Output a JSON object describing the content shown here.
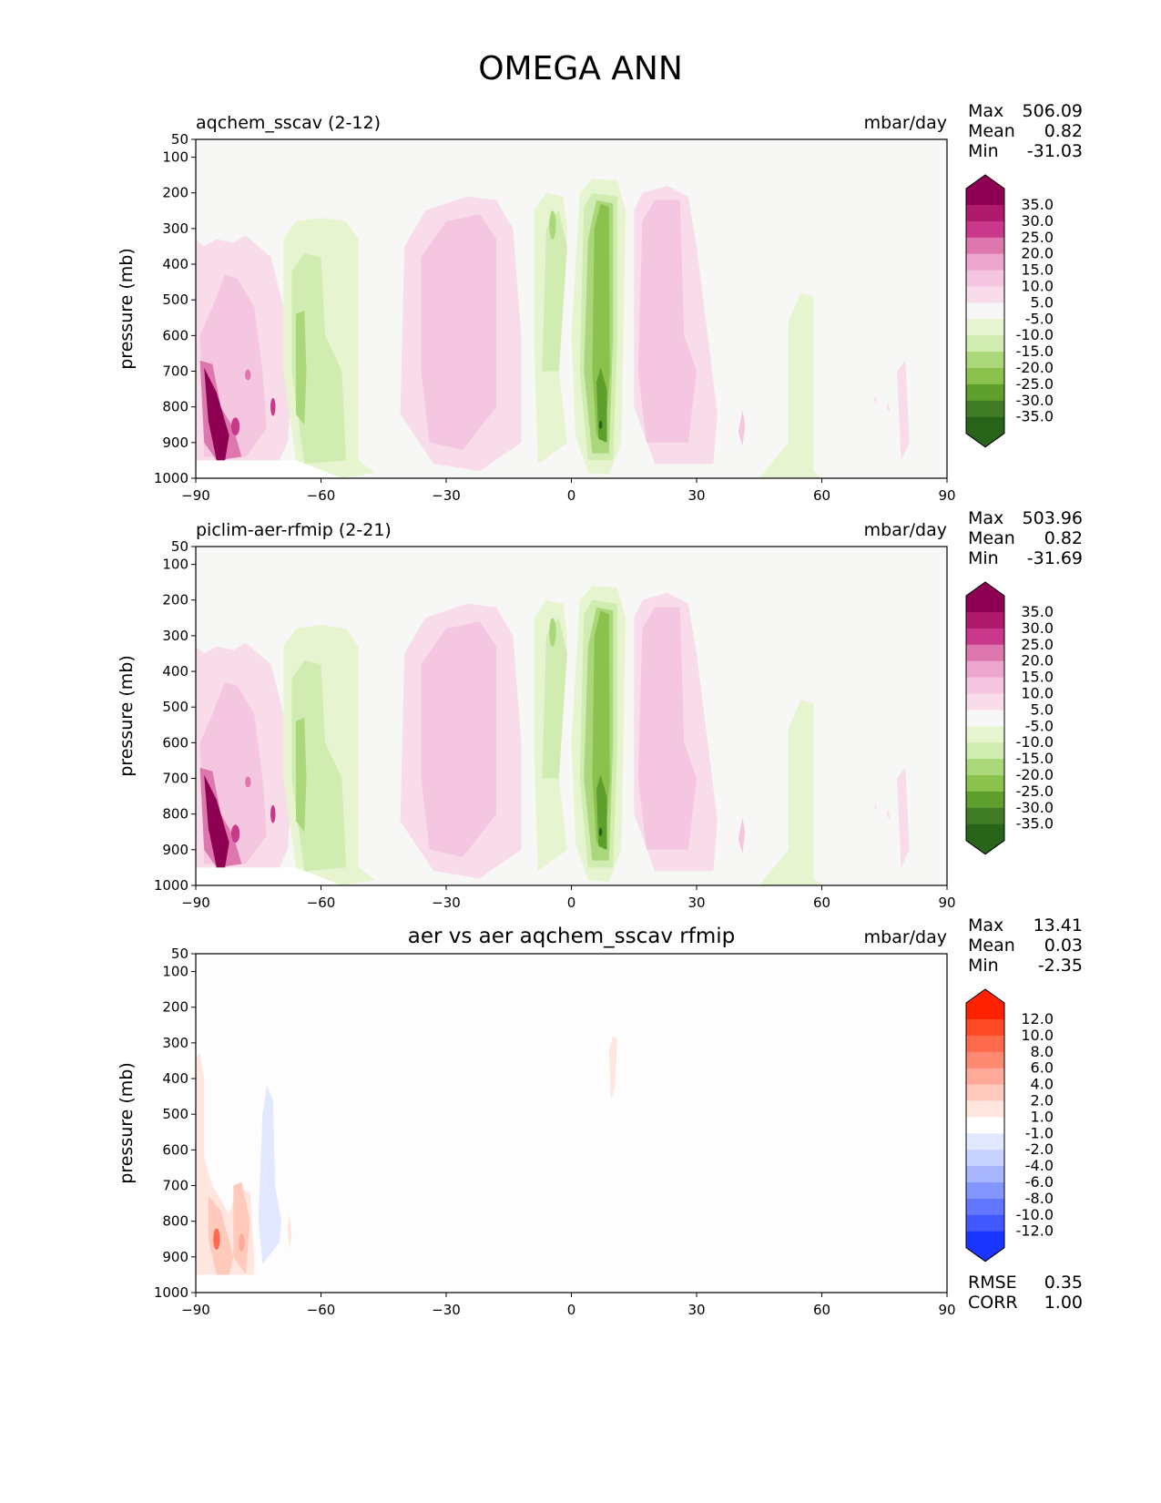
{
  "title": "OMEGA ANN",
  "chart_data": [
    {
      "type": "contour",
      "title": "aqchem_sscav (2-12)",
      "units": "mbar/day",
      "ylabel": "pressure (mb)",
      "xlabel": "",
      "xlim": [
        -90,
        90
      ],
      "ylim": [
        1000,
        50
      ],
      "xticks": [
        -90,
        -60,
        -30,
        0,
        30,
        60,
        90
      ],
      "yticks": [
        50,
        100,
        200,
        300,
        400,
        500,
        600,
        700,
        800,
        900,
        1000
      ],
      "stats": [
        {
          "label": "Max",
          "value": "506.09"
        },
        {
          "label": "Mean",
          "value": "0.82"
        },
        {
          "label": "Min",
          "value": "-31.03"
        }
      ],
      "colorbar": {
        "labels": [
          "35.0",
          "30.0",
          "25.0",
          "20.0",
          "15.0",
          "10.0",
          "5.0",
          "-5.0",
          "-10.0",
          "-15.0",
          "-20.0",
          "-25.0",
          "-30.0",
          "-35.0"
        ],
        "colors": [
          "#8e0152",
          "#b01a6d",
          "#c9388b",
          "#de77ae",
          "#eda6cd",
          "#f4c6e0",
          "#f8dcea",
          "#f7f7f7",
          "#e6f5d0",
          "#d0ecb0",
          "#a9d77a",
          "#8bc24e",
          "#5e9e2d",
          "#417d26",
          "#276419"
        ]
      }
    },
    {
      "type": "contour",
      "title": "piclim-aer-rfmip (2-21)",
      "units": "mbar/day",
      "ylabel": "pressure (mb)",
      "xlabel": "",
      "xlim": [
        -90,
        90
      ],
      "ylim": [
        1000,
        50
      ],
      "xticks": [
        -90,
        -60,
        -30,
        0,
        30,
        60,
        90
      ],
      "yticks": [
        50,
        100,
        200,
        300,
        400,
        500,
        600,
        700,
        800,
        900,
        1000
      ],
      "stats": [
        {
          "label": "Max",
          "value": "503.96"
        },
        {
          "label": "Mean",
          "value": "0.82"
        },
        {
          "label": "Min",
          "value": "-31.69"
        }
      ],
      "colorbar": {
        "labels": [
          "35.0",
          "30.0",
          "25.0",
          "20.0",
          "15.0",
          "10.0",
          "5.0",
          "-5.0",
          "-10.0",
          "-15.0",
          "-20.0",
          "-25.0",
          "-30.0",
          "-35.0"
        ],
        "colors": [
          "#8e0152",
          "#b01a6d",
          "#c9388b",
          "#de77ae",
          "#eda6cd",
          "#f4c6e0",
          "#f8dcea",
          "#f7f7f7",
          "#e6f5d0",
          "#d0ecb0",
          "#a9d77a",
          "#8bc24e",
          "#5e9e2d",
          "#417d26",
          "#276419"
        ]
      }
    },
    {
      "type": "contour",
      "title": "aer vs aer aqchem_sscav rfmip",
      "units": "mbar/day",
      "ylabel": "pressure (mb)",
      "xlabel": "",
      "xlim": [
        -90,
        90
      ],
      "ylim": [
        1000,
        50
      ],
      "xticks": [
        -90,
        -60,
        -30,
        0,
        30,
        60,
        90
      ],
      "yticks": [
        50,
        100,
        200,
        300,
        400,
        500,
        600,
        700,
        800,
        900,
        1000
      ],
      "stats": [
        {
          "label": "Max",
          "value": "13.41"
        },
        {
          "label": "Mean",
          "value": "0.03"
        },
        {
          "label": "Min",
          "value": "-2.35"
        }
      ],
      "extra_stats": [
        {
          "label": "RMSE",
          "value": "0.35"
        },
        {
          "label": "CORR",
          "value": "1.00"
        }
      ],
      "colorbar": {
        "labels": [
          "12.0",
          "10.0",
          "8.0",
          "6.0",
          "4.0",
          "2.0",
          "1.0",
          "-1.0",
          "-2.0",
          "-4.0",
          "-6.0",
          "-8.0",
          "-10.0",
          "-12.0"
        ],
        "colors": [
          "#ff2200",
          "#ff4a26",
          "#ff6a4c",
          "#ff8a72",
          "#ffaa98",
          "#ffc9bc",
          "#ffe6df",
          "#ffffff",
          "#e2e8ff",
          "#c8d2ff",
          "#a8b6ff",
          "#8496ff",
          "#6276ff",
          "#4158ff",
          "#1a35ff"
        ]
      }
    }
  ]
}
